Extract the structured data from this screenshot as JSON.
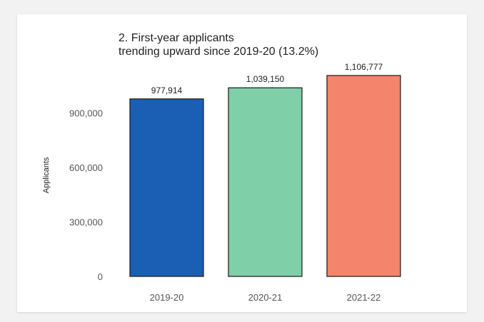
{
  "chart_data": {
    "type": "bar",
    "title_lines": [
      "2. First-year applicants",
      "trending upward since 2019-20 (13.2%)"
    ],
    "xlabel": "",
    "ylabel": "Applicants",
    "categories": [
      "2019-20",
      "2020-21",
      "2021-22"
    ],
    "values": [
      977914,
      1039150,
      1106777
    ],
    "value_labels": [
      "977,914",
      "1,039,150",
      "1,106,777"
    ],
    "yticks": [
      0,
      300000,
      600000,
      900000
    ],
    "ytick_labels": [
      "0",
      "300,000",
      "600,000",
      "900,000"
    ],
    "ylim": [
      0,
      1106777
    ],
    "colors": [
      "#1a5fb4",
      "#7fcfa8",
      "#f4846c"
    ],
    "grid": false,
    "legend": "none"
  }
}
